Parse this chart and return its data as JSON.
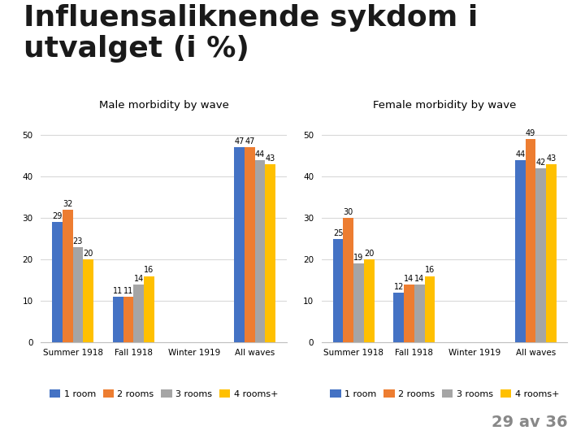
{
  "title_line1": "Influensaliknende sykdom i",
  "title_line2": "utvalget (i %)",
  "title_fontsize": 26,
  "title_fontweight": "bold",
  "title_color": "#1a1a1a",
  "male_subtitle": "Male morbidity by wave",
  "female_subtitle": "Female morbidity by wave",
  "subtitle_fontsize": 9.5,
  "categories": [
    "Summer 1918",
    "Fall 1918",
    "Winter 1919",
    "All waves"
  ],
  "legend_labels": [
    "1 room",
    "2 rooms",
    "3 rooms",
    "4 rooms+"
  ],
  "colors": [
    "#4472C4",
    "#ED7D31",
    "#A5A5A5",
    "#FFC000"
  ],
  "male_data": [
    [
      29,
      32,
      23,
      20
    ],
    [
      11,
      11,
      14,
      16
    ],
    [
      0,
      0,
      0,
      0
    ],
    [
      47,
      47,
      44,
      43
    ]
  ],
  "female_data": [
    [
      25,
      30,
      19,
      20
    ],
    [
      12,
      14,
      14,
      16
    ],
    [
      0,
      0,
      0,
      0
    ],
    [
      44,
      49,
      42,
      43
    ]
  ],
  "ylim": [
    0,
    55
  ],
  "yticks": [
    0,
    10,
    20,
    30,
    40,
    50
  ],
  "bar_width": 0.17,
  "label_fontsize": 7,
  "tick_fontsize": 7.5,
  "legend_fontsize": 8,
  "footer_text": "29 av 36",
  "footer_fontsize": 14,
  "footer_color": "#888888",
  "background_color": "#FFFFFF",
  "grid_color": "#D9D9D9",
  "spine_color": "#BFBFBF"
}
